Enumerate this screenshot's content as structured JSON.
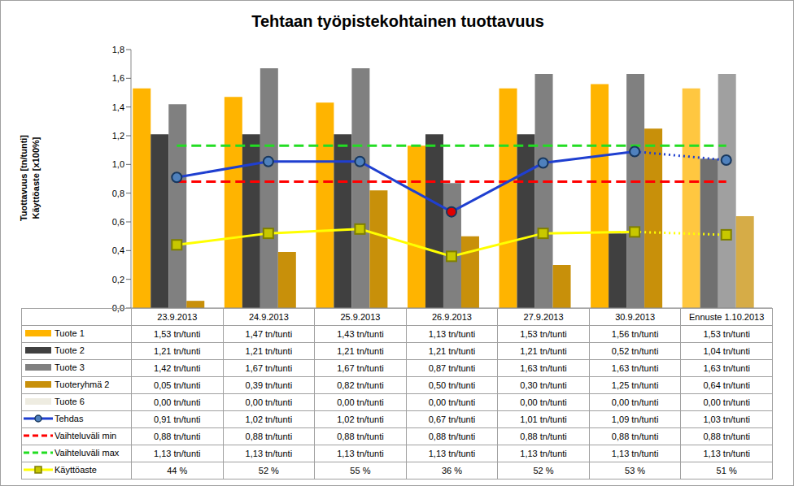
{
  "chart_data": {
    "type": "bar",
    "title": "Tehtaan työpistekohtainen tuottavuus",
    "ylabel": [
      "Tuottavuus [tn/tunti]",
      "Käyttöaste [x100%]"
    ],
    "categories": [
      "23.9.2013",
      "24.9.2013",
      "25.9.2013",
      "26.9.2013",
      "27.9.2013",
      "30.9.2013",
      "Ennuste 1.10.2013"
    ],
    "ylim": [
      0,
      1.8
    ],
    "yticks": [
      {
        "value": 0,
        "label": "0,0"
      },
      {
        "value": 0.2,
        "label": "0,2"
      },
      {
        "value": 0.4,
        "label": "0,4"
      },
      {
        "value": 0.6,
        "label": "0,6"
      },
      {
        "value": 0.8,
        "label": "0,8"
      },
      {
        "value": 1.0,
        "label": "1,0"
      },
      {
        "value": 1.2,
        "label": "1,2"
      },
      {
        "value": 1.4,
        "label": "1,4"
      },
      {
        "value": 1.6,
        "label": "1,6"
      },
      {
        "value": 1.8,
        "label": "1,8"
      }
    ],
    "grid": false,
    "series": [
      {
        "name": "Tuote 1",
        "type": "bar",
        "color": "#FFB400",
        "values": [
          1.53,
          1.47,
          1.43,
          1.13,
          1.53,
          1.56,
          1.53
        ],
        "value_labels": [
          "1,53 tn/tunti",
          "1,47 tn/tunti",
          "1,43 tn/tunti",
          "1,13 tn/tunti",
          "1,53 tn/tunti",
          "1,56 tn/tunti",
          "1,53 tn/tunti"
        ]
      },
      {
        "name": "Tuote 2",
        "type": "bar",
        "color": "#404040",
        "values": [
          1.21,
          1.21,
          1.21,
          1.21,
          1.21,
          0.52,
          1.04
        ],
        "value_labels": [
          "1,21 tn/tunti",
          "1,21 tn/tunti",
          "1,21 tn/tunti",
          "1,21 tn/tunti",
          "1,21 tn/tunti",
          "0,52 tn/tunti",
          "1,04 tn/tunti"
        ]
      },
      {
        "name": "Tuote 3",
        "type": "bar",
        "color": "#808080",
        "values": [
          1.42,
          1.67,
          1.67,
          0.87,
          1.63,
          1.63,
          1.63
        ],
        "value_labels": [
          "1,42 tn/tunti",
          "1,67 tn/tunti",
          "1,67 tn/tunti",
          "0,87 tn/tunti",
          "1,63 tn/tunti",
          "1,63 tn/tunti",
          "1,63 tn/tunti"
        ]
      },
      {
        "name": "Tuoteryhmä 2",
        "type": "bar",
        "color": "#C8900A",
        "values": [
          0.05,
          0.39,
          0.82,
          0.5,
          0.3,
          1.25,
          0.64
        ],
        "value_labels": [
          "0,05 tn/tunti",
          "0,39 tn/tunti",
          "0,82 tn/tunti",
          "0,50 tn/tunti",
          "0,30 tn/tunti",
          "1,25 tn/tunti",
          "0,64 tn/tunti"
        ]
      },
      {
        "name": "Tuote 6",
        "type": "bar",
        "color": "#EEECE1",
        "values": [
          0,
          0,
          0,
          0,
          0,
          0,
          0
        ],
        "value_labels": [
          "0,00 tn/tunti",
          "0,00 tn/tunti",
          "0,00 tn/tunti",
          "0,00 tn/tunti",
          "0,00 tn/tunti",
          "0,00 tn/tunti",
          "0,00 tn/tunti"
        ]
      },
      {
        "name": "Tehdas",
        "type": "line",
        "color": "#1F3FD0",
        "marker": "circle",
        "line_style": "solid",
        "values": [
          0.91,
          1.02,
          1.02,
          0.67,
          1.01,
          1.09,
          1.03
        ],
        "value_labels": [
          "0,91 tn/tunti",
          "1,02 tn/tunti",
          "1,02 tn/tunti",
          "0,67 tn/tunti",
          "1,01 tn/tunti",
          "1,09 tn/tunti",
          "1,03 tn/tunti"
        ]
      },
      {
        "name": "Vaihteluväli min",
        "type": "line",
        "color": "#FF0000",
        "marker": "none",
        "line_style": "dashed",
        "values": [
          0.88,
          0.88,
          0.88,
          0.88,
          0.88,
          0.88,
          0.88
        ],
        "value_labels": [
          "0,88 tn/tunti",
          "0,88 tn/tunti",
          "0,88 tn/tunti",
          "0,88 tn/tunti",
          "0,88 tn/tunti",
          "0,88 tn/tunti",
          "0,88 tn/tunti"
        ]
      },
      {
        "name": "Vaihteluväli max",
        "type": "line",
        "color": "#22DD22",
        "marker": "none",
        "line_style": "dashed",
        "values": [
          1.13,
          1.13,
          1.13,
          1.13,
          1.13,
          1.13,
          1.13
        ],
        "value_labels": [
          "1,13 tn/tunti",
          "1,13 tn/tunti",
          "1,13 tn/tunti",
          "1,13 tn/tunti",
          "1,13 tn/tunti",
          "1,13 tn/tunti",
          "1,13 tn/tunti"
        ]
      },
      {
        "name": "Käyttöaste",
        "type": "line",
        "color": "#FFFF00",
        "marker": "square",
        "line_style": "solid",
        "values": [
          0.44,
          0.52,
          0.55,
          0.36,
          0.52,
          0.53,
          0.51
        ],
        "value_labels": [
          "44 %",
          "52 %",
          "55 %",
          "36 %",
          "52 %",
          "53 %",
          "51 %"
        ]
      }
    ]
  }
}
